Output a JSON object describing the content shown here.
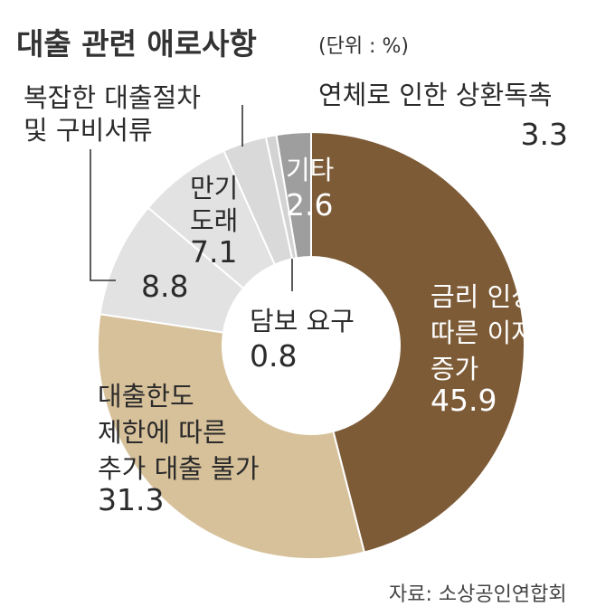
{
  "title": "대출 관련 애로사항",
  "unit": "(단위 : %)",
  "source": "자료: 소상공인연합회",
  "chart_data": {
    "type": "pie",
    "title": "대출 관련 애로사항",
    "unit": "(단위 : %)",
    "donut": true,
    "start": "12 o'clock, clockwise",
    "slices": [
      {
        "label_lines": [
          "금리 인상에",
          "따른 이자부담",
          "증가"
        ],
        "value": 45.9,
        "value_text": "45.9",
        "color": "#7d5b37"
      },
      {
        "label_lines": [
          "대출한도",
          "제한에 따른",
          "추가 대출 불가"
        ],
        "value": 31.3,
        "value_text": "31.3",
        "color": "#d7c19a"
      },
      {
        "label_lines": [
          "복잡한 대출절차",
          "및 구비서류"
        ],
        "value": 8.8,
        "value_text": "8.8",
        "color": "#e2e2e2"
      },
      {
        "label_lines": [
          "만기",
          "도래"
        ],
        "value": 7.1,
        "value_text": "7.1",
        "color": "#e2e2e2"
      },
      {
        "label_lines": [
          "연체로 인한 상환독촉"
        ],
        "value": 3.3,
        "value_text": "3.3",
        "color": "#d9d9d9"
      },
      {
        "label_lines": [
          "담보 요구"
        ],
        "value": 0.8,
        "value_text": "0.8",
        "color": "#d3d3d3"
      },
      {
        "label_lines": [
          "기타"
        ],
        "value": 2.6,
        "value_text": "2.6",
        "color": "#9e9e9e"
      }
    ]
  }
}
